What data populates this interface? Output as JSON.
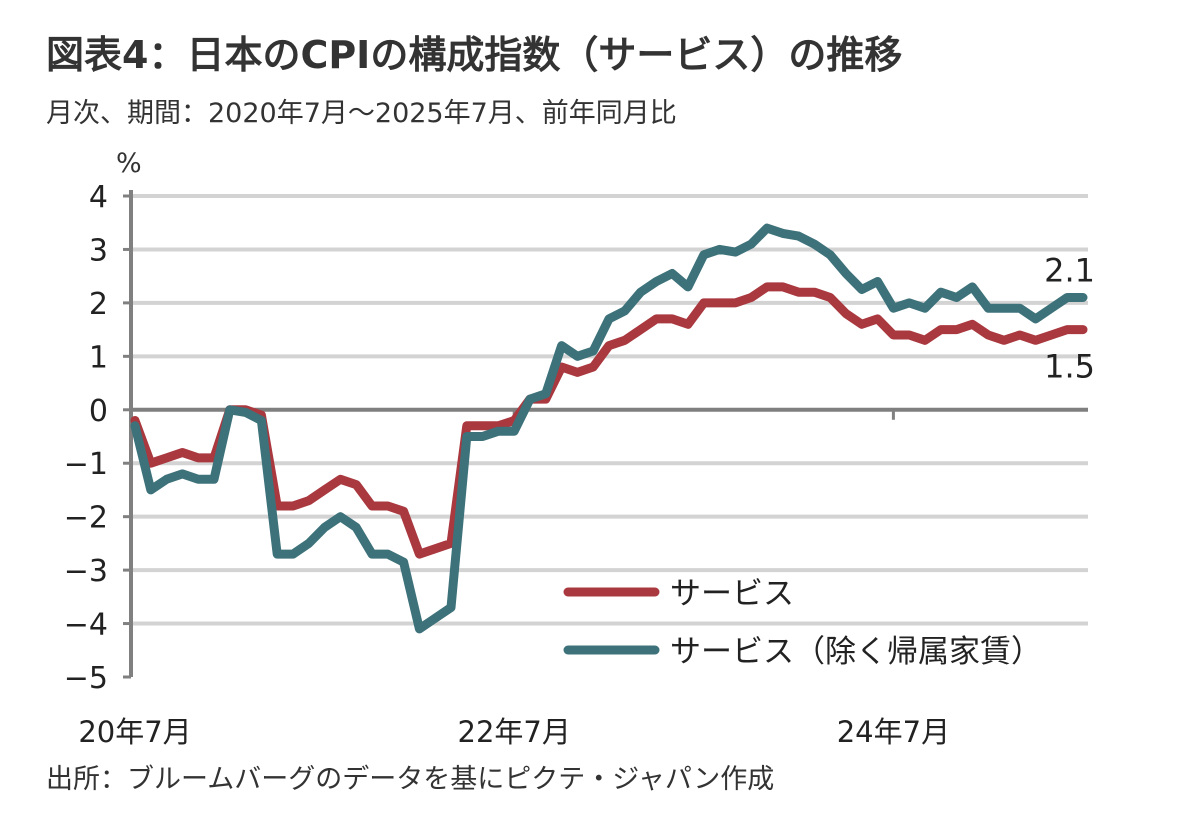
{
  "chart_data": {
    "type": "line",
    "title": "図表4：日本のCPIの構成指数（サービス）の推移",
    "subtitle": "月次、期間：2020年7月～2025年7月、前年同月比",
    "ylabel": "%",
    "xlabel": "",
    "ylim": [
      -5,
      4
    ],
    "yticks": [
      "4",
      "3",
      "2",
      "1",
      "0",
      "-1",
      "-2",
      "-3",
      "-4",
      "-5"
    ],
    "x_start": "2020-07",
    "x_end": "2025-07",
    "xtick_labels": [
      {
        "label": "20年7月",
        "month_index": 0
      },
      {
        "label": "22年7月",
        "month_index": 24
      },
      {
        "label": "24年7月",
        "month_index": 48
      }
    ],
    "grid": true,
    "legend_position": "bottom-right",
    "series": [
      {
        "name": "サービス",
        "color": "#a9383f",
        "end_label": "1.5",
        "values": [
          -0.2,
          -1.0,
          -0.9,
          -0.8,
          -0.9,
          -0.9,
          0.0,
          0.0,
          -0.1,
          -1.8,
          -1.8,
          -1.7,
          -1.5,
          -1.3,
          -1.4,
          -1.8,
          -1.8,
          -1.9,
          -2.7,
          -2.6,
          -2.5,
          -0.3,
          -0.3,
          -0.3,
          -0.2,
          0.2,
          0.2,
          0.8,
          0.7,
          0.8,
          1.2,
          1.3,
          1.5,
          1.7,
          1.7,
          1.6,
          2.0,
          2.0,
          2.0,
          2.1,
          2.3,
          2.3,
          2.2,
          2.2,
          2.1,
          1.8,
          1.6,
          1.7,
          1.4,
          1.4,
          1.3,
          1.5,
          1.5,
          1.6,
          1.4,
          1.3,
          1.4,
          1.3,
          1.4,
          1.5,
          1.5
        ]
      },
      {
        "name": "サービス（除く帰属家賃）",
        "color": "#3e727a",
        "end_label": "2.1",
        "values": [
          -0.3,
          -1.5,
          -1.3,
          -1.2,
          -1.3,
          -1.3,
          0.0,
          -0.05,
          -0.2,
          -2.7,
          -2.7,
          -2.5,
          -2.2,
          -2.0,
          -2.2,
          -2.7,
          -2.7,
          -2.85,
          -4.1,
          -3.9,
          -3.7,
          -0.5,
          -0.5,
          -0.4,
          -0.4,
          0.2,
          0.3,
          1.2,
          1.0,
          1.1,
          1.7,
          1.85,
          2.2,
          2.4,
          2.55,
          2.3,
          2.9,
          3.0,
          2.95,
          3.1,
          3.4,
          3.3,
          3.25,
          3.1,
          2.9,
          2.55,
          2.25,
          2.4,
          1.9,
          2.0,
          1.9,
          2.2,
          2.1,
          2.3,
          1.9,
          1.9,
          1.9,
          1.7,
          1.9,
          2.1,
          2.1
        ]
      }
    ],
    "source": "出所：ブルームバーグのデータを基にピクテ・ジャパン作成"
  }
}
